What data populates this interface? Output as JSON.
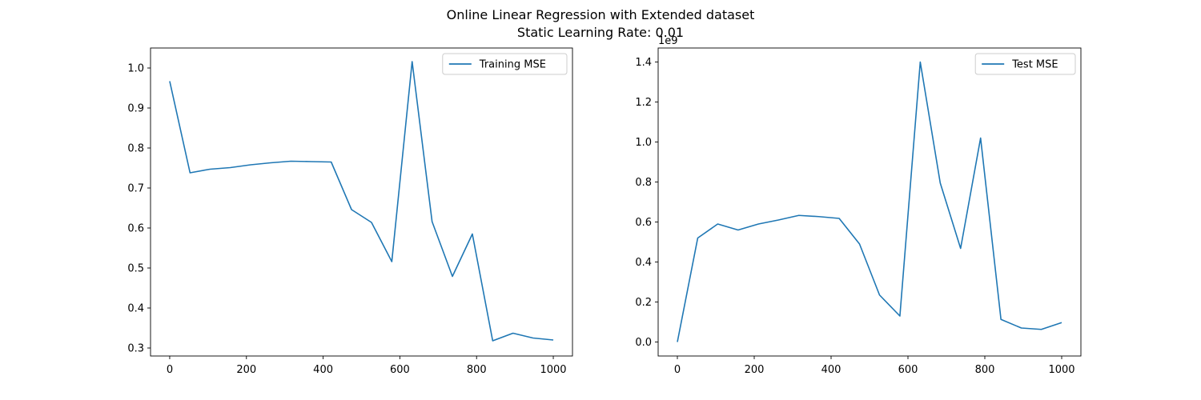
{
  "figure": {
    "title_line1": "Online Linear Regression with Extended dataset",
    "title_line2": "Static Learning Rate: 0.01"
  },
  "line_color": "#1f77b4",
  "chart_data": [
    {
      "type": "line",
      "legend_position": "top-right",
      "grid": false,
      "xlim": [
        -50,
        1050
      ],
      "ylim": [
        0.28,
        1.05
      ],
      "x_ticks": [
        0,
        200,
        400,
        600,
        800,
        1000
      ],
      "y_ticks": [
        0.3,
        0.4,
        0.5,
        0.6,
        0.7,
        0.8,
        0.9,
        1.0
      ],
      "y_tick_labels": [
        "0.3",
        "0.4",
        "0.5",
        "0.6",
        "0.7",
        "0.8",
        "0.9",
        "1.0"
      ],
      "y_offset_label": "",
      "series": [
        {
          "name": "Training MSE",
          "x": [
            0,
            53,
            105,
            158,
            211,
            263,
            316,
            368,
            421,
            474,
            526,
            579,
            632,
            684,
            737,
            789,
            842,
            895,
            947,
            1000
          ],
          "y": [
            0.967,
            0.738,
            0.747,
            0.751,
            0.758,
            0.763,
            0.767,
            0.766,
            0.765,
            0.646,
            0.614,
            0.516,
            1.016,
            0.616,
            0.479,
            0.585,
            0.318,
            0.337,
            0.325,
            0.32
          ]
        }
      ]
    },
    {
      "type": "line",
      "legend_position": "top-right",
      "grid": false,
      "xlim": [
        -50,
        1050
      ],
      "ylim": [
        -0.07,
        1.47
      ],
      "x_ticks": [
        0,
        200,
        400,
        600,
        800,
        1000
      ],
      "y_ticks": [
        0.0,
        0.2,
        0.4,
        0.6,
        0.8,
        1.0,
        1.2,
        1.4
      ],
      "y_tick_labels": [
        "0.0",
        "0.2",
        "0.4",
        "0.6",
        "0.8",
        "1.0",
        "1.2",
        "1.4"
      ],
      "y_offset_label": "1e9",
      "series": [
        {
          "name": "Test MSE",
          "x": [
            0,
            53,
            105,
            158,
            211,
            263,
            316,
            368,
            421,
            474,
            526,
            579,
            632,
            684,
            737,
            789,
            842,
            895,
            947,
            1000
          ],
          "y": [
            0.0,
            0.52,
            0.59,
            0.56,
            0.59,
            0.61,
            0.633,
            0.627,
            0.618,
            0.49,
            0.235,
            0.13,
            1.4,
            0.795,
            0.468,
            1.02,
            0.113,
            0.07,
            0.063,
            0.097
          ]
        }
      ]
    }
  ]
}
